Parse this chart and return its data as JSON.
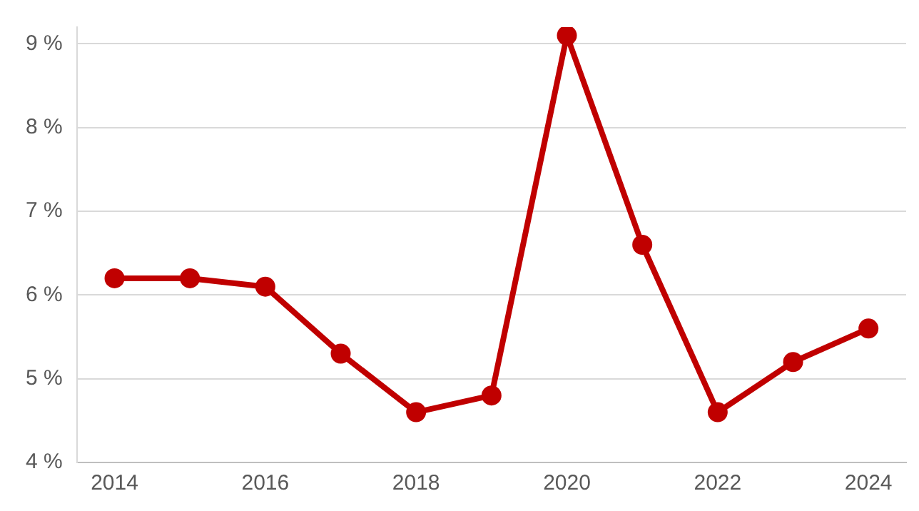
{
  "chart_data": {
    "type": "line",
    "x": [
      2014,
      2015,
      2016,
      2017,
      2018,
      2019,
      2020,
      2021,
      2022,
      2023,
      2024
    ],
    "series": [
      {
        "color": "#c00000",
        "values": [
          6.2,
          6.2,
          6.1,
          5.3,
          4.6,
          4.8,
          9.1,
          6.6,
          4.6,
          5.2,
          5.6
        ]
      }
    ],
    "xlim": [
      2013.5,
      2024.5
    ],
    "xticks": [
      2014,
      2016,
      2018,
      2020,
      2022,
      2024
    ],
    "ylim": [
      4,
      9.2
    ],
    "yticks": [
      {
        "value": 4,
        "label": "4 %"
      },
      {
        "value": 5,
        "label": "5 %"
      },
      {
        "value": 6,
        "label": "6 %"
      },
      {
        "value": 7,
        "label": "7 %"
      },
      {
        "value": 8,
        "label": "8 %"
      },
      {
        "value": 9,
        "label": "9 %"
      }
    ],
    "grid": "y",
    "legend": false,
    "marker": "circle",
    "line_style": "solid"
  }
}
